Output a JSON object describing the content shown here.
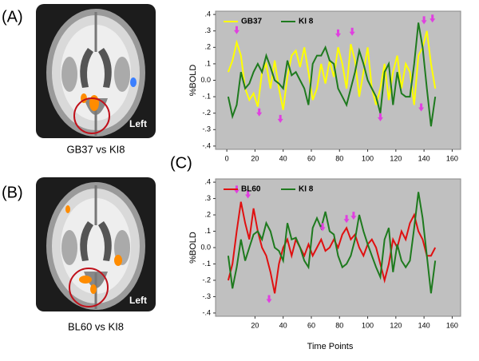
{
  "figure": {
    "panels": [
      {
        "label": "(A)",
        "caption": "GB37 vs KI8",
        "side": "Left"
      },
      {
        "label": "(B)",
        "caption": "BL60 vs KI8",
        "side": "Left"
      }
    ],
    "chart_label": "(C)"
  },
  "chart_data": [
    {
      "type": "line",
      "y_label": "%BOLD",
      "background": "#c0c0c0",
      "legend": "upper left",
      "x": [
        1,
        4,
        7,
        10,
        13,
        16,
        19,
        22,
        25,
        28,
        31,
        34,
        37,
        40,
        43,
        46,
        49,
        52,
        55,
        58,
        61,
        64,
        67,
        70,
        73,
        76,
        79,
        82,
        85,
        88,
        91,
        94,
        97,
        100,
        103,
        106,
        109,
        112,
        115,
        118,
        121,
        124,
        127,
        130,
        133,
        136,
        139,
        142,
        145,
        148
      ],
      "series": [
        {
          "name": "GB37",
          "color": "#ffff00",
          "values": [
            0.05,
            0.12,
            0.23,
            0.15,
            -0.05,
            -0.12,
            -0.08,
            -0.16,
            0.05,
            0.1,
            -0.05,
            0.12,
            -0.05,
            -0.18,
            0.02,
            0.15,
            0.18,
            0.08,
            0.2,
            0.05,
            -0.12,
            -0.05,
            0.1,
            -0.02,
            0.12,
            0.02,
            0.2,
            0.1,
            -0.05,
            0.22,
            0.12,
            -0.1,
            0.05,
            0.2,
            -0.05,
            -0.15,
            -0.05,
            0.1,
            -0.12,
            0.05,
            0.15,
            -0.05,
            0.1,
            0.05,
            -0.15,
            0.15,
            0.2,
            0.3,
            0.1,
            -0.05
          ]
        },
        {
          "name": "KI 8",
          "color": "#1e7a1e",
          "values": [
            -0.1,
            -0.22,
            -0.15,
            0.05,
            -0.05,
            -0.02,
            0.05,
            0.1,
            0.05,
            0.15,
            0.08,
            0.0,
            -0.02,
            -0.05,
            0.12,
            0.03,
            0.05,
            0.0,
            -0.05,
            -0.15,
            0.1,
            0.15,
            0.15,
            0.2,
            0.12,
            0.1,
            -0.05,
            -0.1,
            -0.15,
            -0.05,
            0.05,
            0.18,
            0.1,
            0.0,
            -0.05,
            -0.1,
            -0.2,
            0.05,
            0.1,
            -0.15,
            0.05,
            -0.08,
            -0.1,
            -0.1,
            0.1,
            0.35,
            0.2,
            -0.05,
            -0.28,
            -0.1
          ]
        }
      ],
      "markers": {
        "color": "#e040e0",
        "x": [
          7,
          79,
          89,
          140,
          146,
          23,
          38,
          109,
          138
        ],
        "y": [
          0.3,
          0.28,
          0.29,
          0.36,
          0.37,
          -0.2,
          -0.24,
          -0.23,
          -0.17
        ]
      },
      "xlim": [
        -8,
        166
      ],
      "ylim": [
        -0.42,
        0.42
      ],
      "xticks": [
        0,
        20,
        40,
        60,
        80,
        100,
        120,
        140,
        160
      ],
      "yticks": [
        {
          "value": 0.4,
          "label": ".4"
        },
        {
          "value": 0.3,
          "label": ".3"
        },
        {
          "value": 0.2,
          "label": ".2"
        },
        {
          "value": 0.1,
          "label": ".1"
        },
        {
          "value": 0,
          "label": "0.0"
        },
        {
          "value": -0.1,
          "label": "-.1"
        },
        {
          "value": -0.2,
          "label": "-.2"
        },
        {
          "value": -0.3,
          "label": "-.3"
        },
        {
          "value": -0.4,
          "label": "-.4"
        }
      ]
    },
    {
      "type": "line",
      "y_label": "%BOLD",
      "x_label": "Time Points",
      "background": "#c0c0c0",
      "legend": "upper left",
      "x": [
        1,
        4,
        7,
        10,
        13,
        16,
        19,
        22,
        25,
        28,
        31,
        34,
        37,
        40,
        43,
        46,
        49,
        52,
        55,
        58,
        61,
        64,
        67,
        70,
        73,
        76,
        79,
        82,
        85,
        88,
        91,
        94,
        97,
        100,
        103,
        106,
        109,
        112,
        115,
        118,
        121,
        124,
        127,
        130,
        133,
        136,
        139,
        142,
        145,
        148
      ],
      "series": [
        {
          "name": "BL60",
          "color": "#e01010",
          "values": [
            -0.2,
            -0.1,
            0.1,
            0.28,
            0.15,
            0.05,
            0.24,
            0.1,
            0.0,
            -0.05,
            -0.15,
            -0.28,
            -0.1,
            0.0,
            0.05,
            -0.05,
            0.05,
            0.0,
            -0.05,
            0.02,
            -0.05,
            0.0,
            0.05,
            -0.02,
            0.0,
            0.05,
            0.0,
            0.08,
            0.12,
            0.05,
            0.08,
            0.0,
            -0.05,
            0.02,
            0.05,
            0.0,
            -0.1,
            -0.2,
            -0.1,
            0.05,
            0.0,
            0.1,
            0.05,
            0.15,
            0.2,
            0.1,
            0.05,
            -0.05,
            -0.05,
            0.0
          ]
        },
        {
          "name": "KI 8",
          "color": "#1e7a1e",
          "values": [
            -0.05,
            -0.25,
            -0.12,
            0.05,
            -0.08,
            0.0,
            0.08,
            0.1,
            0.05,
            0.15,
            0.1,
            0.0,
            -0.02,
            -0.08,
            0.15,
            0.05,
            0.06,
            0.0,
            -0.08,
            -0.12,
            0.12,
            0.18,
            0.12,
            0.22,
            0.1,
            0.08,
            -0.05,
            -0.12,
            -0.1,
            -0.05,
            0.05,
            0.2,
            0.1,
            0.02,
            -0.05,
            -0.12,
            -0.18,
            0.05,
            0.12,
            -0.15,
            0.02,
            -0.08,
            -0.12,
            -0.08,
            0.12,
            0.34,
            0.18,
            -0.05,
            -0.28,
            -0.08
          ]
        }
      ],
      "markers": {
        "color": "#e040e0",
        "x": [
          7,
          15,
          68,
          85,
          90,
          30
        ],
        "y": [
          0.35,
          0.32,
          0.12,
          0.17,
          0.19,
          -0.32
        ]
      },
      "xlim": [
        -8,
        166
      ],
      "ylim": [
        -0.42,
        0.42
      ],
      "xticks": [
        20,
        40,
        60,
        80,
        100,
        120,
        140,
        160
      ],
      "yticks": [
        {
          "value": 0.4,
          "label": ".4"
        },
        {
          "value": 0.3,
          "label": ".3"
        },
        {
          "value": 0.2,
          "label": ".2"
        },
        {
          "value": 0.1,
          "label": ".1"
        },
        {
          "value": 0,
          "label": "0.0"
        },
        {
          "value": -0.1,
          "label": "-.1"
        },
        {
          "value": -0.2,
          "label": "-.2"
        },
        {
          "value": -0.3,
          "label": "-.3"
        },
        {
          "value": -0.4,
          "label": "-.4"
        }
      ]
    }
  ]
}
